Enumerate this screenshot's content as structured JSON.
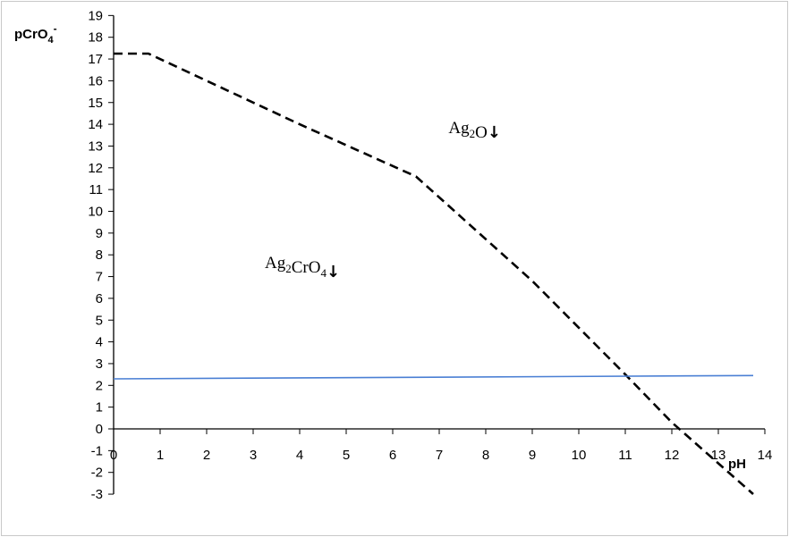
{
  "chart_data": {
    "type": "line",
    "ylabel": {
      "base": "pCrO",
      "sub": "4",
      "sup": "-"
    },
    "xlabel": "pH",
    "xlim": [
      0,
      14
    ],
    "ylim": [
      -3,
      19
    ],
    "x_ticks": [
      0,
      1,
      2,
      3,
      4,
      5,
      6,
      7,
      8,
      9,
      10,
      11,
      12,
      13,
      14
    ],
    "y_ticks": [
      -3,
      -2,
      -1,
      0,
      1,
      2,
      3,
      4,
      5,
      6,
      7,
      8,
      9,
      10,
      11,
      12,
      13,
      14,
      15,
      16,
      17,
      18,
      19
    ],
    "grid": false,
    "series": [
      {
        "style": "dashed",
        "color": "#000000",
        "x": [
          0,
          0.75,
          2.0,
          4.0,
          6.5,
          9.0,
          11.0,
          12.0,
          13.75
        ],
        "y": [
          17.25,
          17.25,
          16.0,
          14.0,
          11.6,
          6.8,
          2.5,
          0.3,
          -3.0
        ]
      },
      {
        "style": "solid",
        "color": "#4a7fd4",
        "x": [
          0,
          13.75
        ],
        "y": [
          2.3,
          2.45
        ]
      }
    ],
    "annotations": [
      {
        "id": "ag2o",
        "parts": [
          {
            "t": "Ag"
          },
          {
            "t": "2",
            "sub": true
          },
          {
            "t": "O"
          }
        ],
        "arrow": "↓",
        "x": 7.2,
        "y": 13.6
      },
      {
        "id": "ag2cro4",
        "parts": [
          {
            "t": "Ag"
          },
          {
            "t": "2",
            "sub": true
          },
          {
            "t": "CrO"
          },
          {
            "t": "4",
            "sub": true
          }
        ],
        "arrow": "↓",
        "x": 3.25,
        "y": 7.4
      }
    ]
  }
}
